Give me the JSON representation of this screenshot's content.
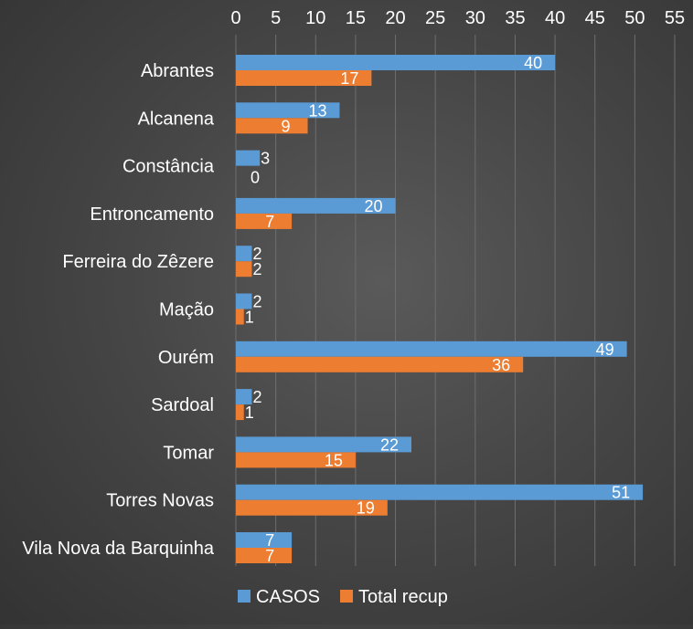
{
  "chart_data": {
    "type": "bar",
    "orientation": "horizontal",
    "categories": [
      "Abrantes",
      "Alcanena",
      "Constância",
      "Entroncamento",
      "Ferreira do Zêzere",
      "Mação",
      "Ourém",
      "Sardoal",
      "Tomar",
      "Torres Novas",
      "Vila Nova da Barquinha"
    ],
    "series": [
      {
        "name": "CASOS",
        "color": "#5b9bd5",
        "values": [
          40,
          13,
          3,
          20,
          2,
          2,
          49,
          2,
          22,
          51,
          7
        ]
      },
      {
        "name": "Total recup",
        "color": "#ed7d31",
        "values": [
          17,
          9,
          0,
          7,
          2,
          1,
          36,
          1,
          15,
          19,
          7
        ]
      }
    ],
    "xlim": [
      0,
      55
    ],
    "xticks": [
      "0",
      "5",
      "10",
      "15",
      "20",
      "25",
      "30",
      "35",
      "40",
      "45",
      "50",
      "55"
    ],
    "x_axis_position": "top",
    "grid": true,
    "legend": "bottom-center",
    "title": "",
    "xlabel": "",
    "ylabel": ""
  }
}
